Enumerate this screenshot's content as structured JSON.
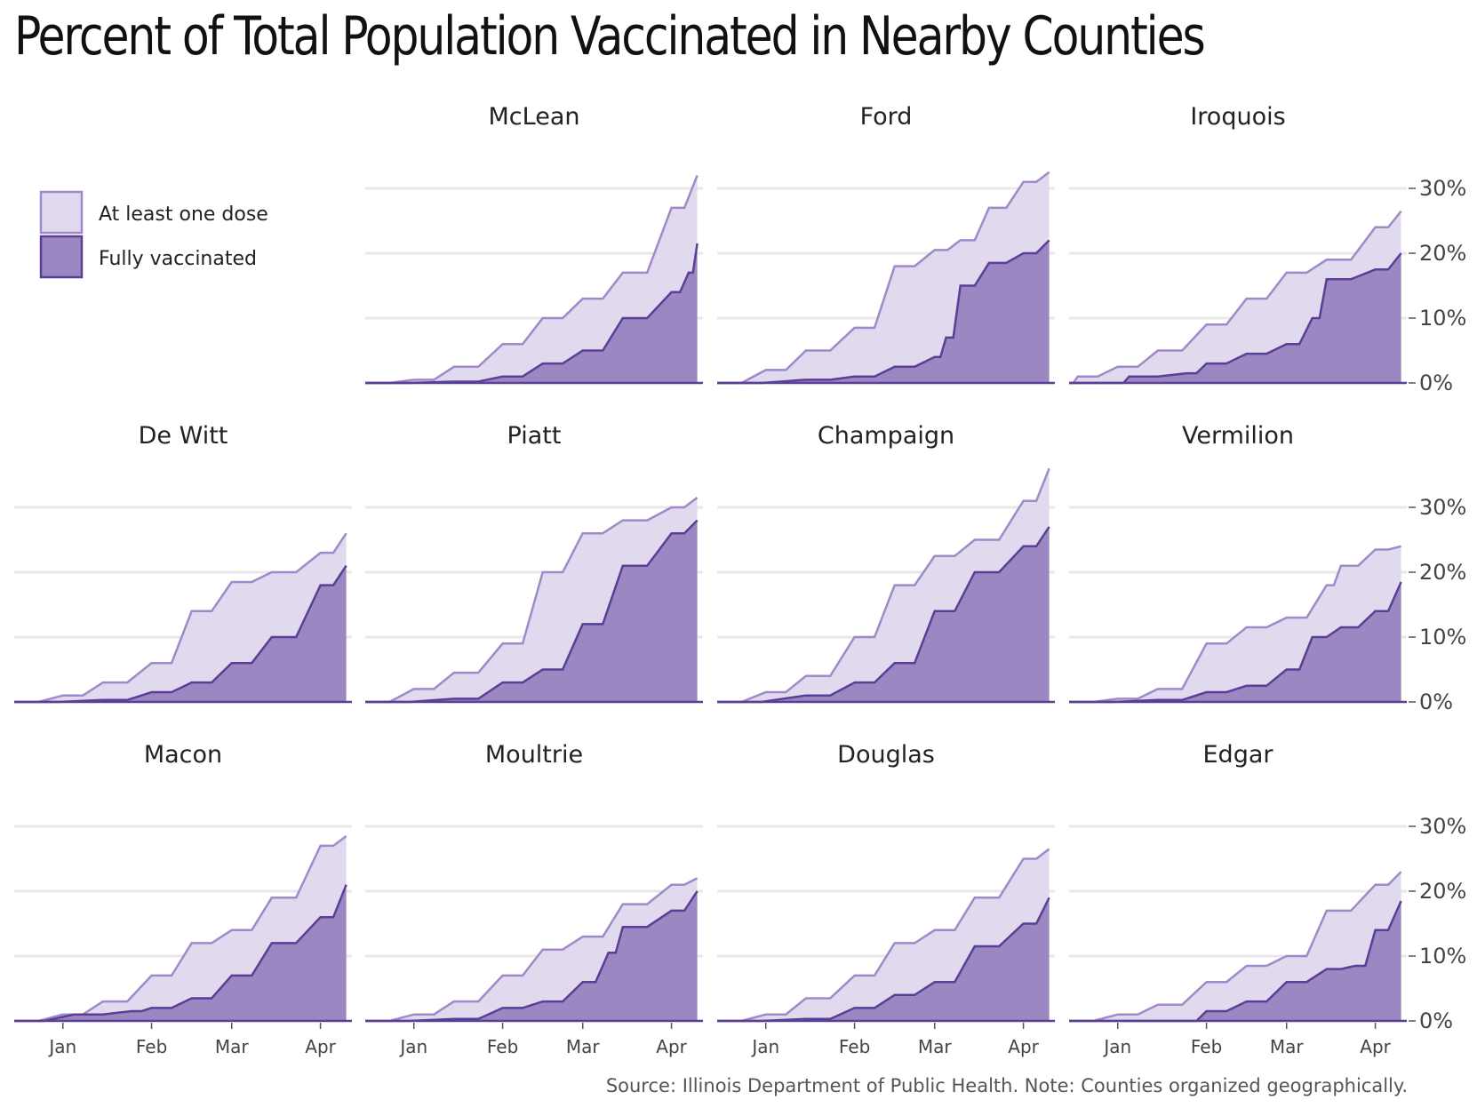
{
  "title": "Percent of Total Population Vaccinated in Nearby Counties",
  "source": "Source: Illinois Department of Public Health. Note: Counties organized geographically.",
  "colors": {
    "one_dose_fill": "#e1d9ee",
    "one_dose_line": "#9e8ac8",
    "full_fill": "#9b87c2",
    "full_line": "#5a3f96",
    "grid": "#e8e8e8"
  },
  "legend": {
    "placement": "top-left",
    "items": [
      {
        "label": "At least one dose",
        "key": "one_dose"
      },
      {
        "label": "Fully vaccinated",
        "key": "full"
      }
    ]
  },
  "chart_data": {
    "type": "area",
    "facets": [
      "McLean",
      "Ford",
      "Iroquois",
      "De Witt",
      "Piatt",
      "Champaign",
      "Vermilion",
      "Macon",
      "Moultrie",
      "Douglas",
      "Edgar"
    ],
    "x_domain": [
      "2020-12-15",
      "2021-04-12"
    ],
    "x_ticks": [
      {
        "label": "Jan",
        "date": "2021-01-01"
      },
      {
        "label": "Feb",
        "date": "2021-02-01"
      },
      {
        "label": "Mar",
        "date": "2021-03-01"
      },
      {
        "label": "Apr",
        "date": "2021-04-01"
      }
    ],
    "ylim": [
      0,
      33
    ],
    "y_ticks": [
      {
        "label": "0%",
        "value": 0
      },
      {
        "label": "10%",
        "value": 10
      },
      {
        "label": "20%",
        "value": 20
      },
      {
        "label": "30%",
        "value": 30
      }
    ],
    "grid": true,
    "series_names": [
      "At least one dose",
      "Fully vaccinated"
    ],
    "counties": [
      {
        "name": "McLean",
        "one_dose": [
          [
            "2020-12-15",
            0
          ],
          [
            "2021-01-01",
            0.5
          ],
          [
            "2021-01-15",
            2.5
          ],
          [
            "2021-02-01",
            6
          ],
          [
            "2021-02-15",
            10
          ],
          [
            "2021-03-01",
            13
          ],
          [
            "2021-03-15",
            17
          ],
          [
            "2021-04-01",
            27
          ],
          [
            "2021-04-10",
            32
          ]
        ],
        "full": [
          [
            "2020-12-15",
            0
          ],
          [
            "2021-01-15",
            0.2
          ],
          [
            "2021-02-01",
            1
          ],
          [
            "2021-02-15",
            3
          ],
          [
            "2021-03-01",
            5
          ],
          [
            "2021-03-15",
            10
          ],
          [
            "2021-04-01",
            14
          ],
          [
            "2021-04-07",
            17
          ],
          [
            "2021-04-10",
            21.5
          ]
        ]
      },
      {
        "name": "Ford",
        "one_dose": [
          [
            "2020-12-15",
            0
          ],
          [
            "2021-01-01",
            2
          ],
          [
            "2021-01-15",
            5
          ],
          [
            "2021-02-01",
            8.5
          ],
          [
            "2021-02-15",
            18
          ],
          [
            "2021-03-01",
            20.5
          ],
          [
            "2021-03-10",
            22
          ],
          [
            "2021-03-20",
            27
          ],
          [
            "2021-04-01",
            31
          ],
          [
            "2021-04-10",
            32.5
          ]
        ],
        "full": [
          [
            "2020-12-15",
            0
          ],
          [
            "2021-01-15",
            0.5
          ],
          [
            "2021-02-01",
            1
          ],
          [
            "2021-02-15",
            2.5
          ],
          [
            "2021-03-01",
            4
          ],
          [
            "2021-03-05",
            7
          ],
          [
            "2021-03-10",
            15
          ],
          [
            "2021-03-20",
            18.5
          ],
          [
            "2021-04-01",
            20
          ],
          [
            "2021-04-10",
            22
          ]
        ]
      },
      {
        "name": "Iroquois",
        "one_dose": [
          [
            "2020-12-15",
            0
          ],
          [
            "2020-12-18",
            1
          ],
          [
            "2021-01-01",
            2.5
          ],
          [
            "2021-01-15",
            5
          ],
          [
            "2021-02-01",
            9
          ],
          [
            "2021-02-15",
            13
          ],
          [
            "2021-03-01",
            17
          ],
          [
            "2021-03-15",
            19
          ],
          [
            "2021-04-01",
            24
          ],
          [
            "2021-04-10",
            26.5
          ]
        ],
        "full": [
          [
            "2020-12-15",
            0
          ],
          [
            "2021-01-01",
            0
          ],
          [
            "2021-01-05",
            1
          ],
          [
            "2021-01-25",
            1.5
          ],
          [
            "2021-02-01",
            3
          ],
          [
            "2021-02-15",
            4.5
          ],
          [
            "2021-03-01",
            6
          ],
          [
            "2021-03-10",
            10
          ],
          [
            "2021-03-15",
            16
          ],
          [
            "2021-04-01",
            17.5
          ],
          [
            "2021-04-10",
            20
          ]
        ]
      },
      {
        "name": "De Witt",
        "one_dose": [
          [
            "2020-12-15",
            0
          ],
          [
            "2021-01-01",
            1
          ],
          [
            "2021-01-15",
            3
          ],
          [
            "2021-02-01",
            6
          ],
          [
            "2021-02-15",
            14
          ],
          [
            "2021-03-01",
            18.5
          ],
          [
            "2021-03-15",
            20
          ],
          [
            "2021-04-01",
            23
          ],
          [
            "2021-04-10",
            26
          ]
        ],
        "full": [
          [
            "2020-12-15",
            0
          ],
          [
            "2021-01-15",
            0.3
          ],
          [
            "2021-02-01",
            1.5
          ],
          [
            "2021-02-15",
            3
          ],
          [
            "2021-03-01",
            6
          ],
          [
            "2021-03-15",
            10
          ],
          [
            "2021-04-01",
            18
          ],
          [
            "2021-04-10",
            21
          ]
        ]
      },
      {
        "name": "Piatt",
        "one_dose": [
          [
            "2020-12-15",
            0
          ],
          [
            "2021-01-01",
            2
          ],
          [
            "2021-01-15",
            4.5
          ],
          [
            "2021-02-01",
            9
          ],
          [
            "2021-02-15",
            20
          ],
          [
            "2021-03-01",
            26
          ],
          [
            "2021-03-15",
            28
          ],
          [
            "2021-04-01",
            30
          ],
          [
            "2021-04-10",
            31.5
          ]
        ],
        "full": [
          [
            "2020-12-15",
            0
          ],
          [
            "2021-01-15",
            0.5
          ],
          [
            "2021-02-01",
            3
          ],
          [
            "2021-02-15",
            5
          ],
          [
            "2021-03-01",
            12
          ],
          [
            "2021-03-15",
            21
          ],
          [
            "2021-04-01",
            26
          ],
          [
            "2021-04-10",
            28
          ]
        ]
      },
      {
        "name": "Champaign",
        "one_dose": [
          [
            "2020-12-15",
            0
          ],
          [
            "2021-01-01",
            1.5
          ],
          [
            "2021-01-15",
            4
          ],
          [
            "2021-02-01",
            10
          ],
          [
            "2021-02-15",
            18
          ],
          [
            "2021-03-01",
            22.5
          ],
          [
            "2021-03-15",
            25
          ],
          [
            "2021-04-01",
            31
          ],
          [
            "2021-04-10",
            36
          ]
        ],
        "full": [
          [
            "2020-12-15",
            0
          ],
          [
            "2021-01-15",
            1
          ],
          [
            "2021-02-01",
            3
          ],
          [
            "2021-02-15",
            6
          ],
          [
            "2021-03-01",
            14
          ],
          [
            "2021-03-15",
            20
          ],
          [
            "2021-04-01",
            24
          ],
          [
            "2021-04-10",
            27
          ]
        ]
      },
      {
        "name": "Vermilion",
        "one_dose": [
          [
            "2020-12-15",
            0
          ],
          [
            "2021-01-01",
            0.5
          ],
          [
            "2021-01-15",
            2
          ],
          [
            "2021-02-01",
            9
          ],
          [
            "2021-02-15",
            11.5
          ],
          [
            "2021-03-01",
            13
          ],
          [
            "2021-03-15",
            18
          ],
          [
            "2021-03-20",
            21
          ],
          [
            "2021-04-01",
            23.5
          ],
          [
            "2021-04-10",
            24
          ]
        ],
        "full": [
          [
            "2020-12-15",
            0
          ],
          [
            "2021-01-15",
            0.3
          ],
          [
            "2021-02-01",
            1.5
          ],
          [
            "2021-02-15",
            2.5
          ],
          [
            "2021-03-01",
            5
          ],
          [
            "2021-03-10",
            10
          ],
          [
            "2021-03-20",
            11.5
          ],
          [
            "2021-04-01",
            14
          ],
          [
            "2021-04-10",
            18.5
          ]
        ]
      },
      {
        "name": "Macon",
        "one_dose": [
          [
            "2020-12-15",
            0
          ],
          [
            "2021-01-01",
            1
          ],
          [
            "2021-01-15",
            3
          ],
          [
            "2021-02-01",
            7
          ],
          [
            "2021-02-15",
            12
          ],
          [
            "2021-03-01",
            14
          ],
          [
            "2021-03-15",
            19
          ],
          [
            "2021-04-01",
            27
          ],
          [
            "2021-04-10",
            28.5
          ]
        ],
        "full": [
          [
            "2020-12-15",
            0
          ],
          [
            "2021-01-05",
            1
          ],
          [
            "2021-01-25",
            1.5
          ],
          [
            "2021-02-01",
            2
          ],
          [
            "2021-02-15",
            3.5
          ],
          [
            "2021-03-01",
            7
          ],
          [
            "2021-03-15",
            12
          ],
          [
            "2021-04-01",
            16
          ],
          [
            "2021-04-10",
            21
          ]
        ]
      },
      {
        "name": "Moultrie",
        "one_dose": [
          [
            "2020-12-15",
            0
          ],
          [
            "2021-01-01",
            1
          ],
          [
            "2021-01-15",
            3
          ],
          [
            "2021-02-01",
            7
          ],
          [
            "2021-02-15",
            11
          ],
          [
            "2021-03-01",
            13
          ],
          [
            "2021-03-15",
            18
          ],
          [
            "2021-04-01",
            21
          ],
          [
            "2021-04-10",
            22
          ]
        ],
        "full": [
          [
            "2020-12-15",
            0
          ],
          [
            "2021-01-15",
            0.3
          ],
          [
            "2021-02-01",
            2
          ],
          [
            "2021-02-15",
            3
          ],
          [
            "2021-03-01",
            6
          ],
          [
            "2021-03-10",
            10.5
          ],
          [
            "2021-03-15",
            14.5
          ],
          [
            "2021-04-01",
            17
          ],
          [
            "2021-04-10",
            20
          ]
        ]
      },
      {
        "name": "Douglas",
        "one_dose": [
          [
            "2020-12-15",
            0
          ],
          [
            "2021-01-01",
            1
          ],
          [
            "2021-01-15",
            3.5
          ],
          [
            "2021-02-01",
            7
          ],
          [
            "2021-02-15",
            12
          ],
          [
            "2021-03-01",
            14
          ],
          [
            "2021-03-15",
            19
          ],
          [
            "2021-04-01",
            25
          ],
          [
            "2021-04-10",
            26.5
          ]
        ],
        "full": [
          [
            "2020-12-15",
            0
          ],
          [
            "2021-01-15",
            0.3
          ],
          [
            "2021-02-01",
            2
          ],
          [
            "2021-02-15",
            4
          ],
          [
            "2021-03-01",
            6
          ],
          [
            "2021-03-15",
            11.5
          ],
          [
            "2021-04-01",
            15
          ],
          [
            "2021-04-10",
            19
          ]
        ]
      },
      {
        "name": "Edgar",
        "one_dose": [
          [
            "2020-12-15",
            0
          ],
          [
            "2021-01-01",
            1
          ],
          [
            "2021-01-15",
            2.5
          ],
          [
            "2021-02-01",
            6
          ],
          [
            "2021-02-15",
            8.5
          ],
          [
            "2021-03-01",
            10
          ],
          [
            "2021-03-15",
            17
          ],
          [
            "2021-04-01",
            21
          ],
          [
            "2021-04-10",
            23
          ]
        ],
        "full": [
          [
            "2020-12-15",
            0
          ],
          [
            "2021-01-25",
            0
          ],
          [
            "2021-02-01",
            1.5
          ],
          [
            "2021-02-15",
            3
          ],
          [
            "2021-03-01",
            6
          ],
          [
            "2021-03-15",
            8
          ],
          [
            "2021-03-25",
            8.5
          ],
          [
            "2021-04-01",
            14
          ],
          [
            "2021-04-10",
            18.5
          ]
        ]
      }
    ]
  }
}
